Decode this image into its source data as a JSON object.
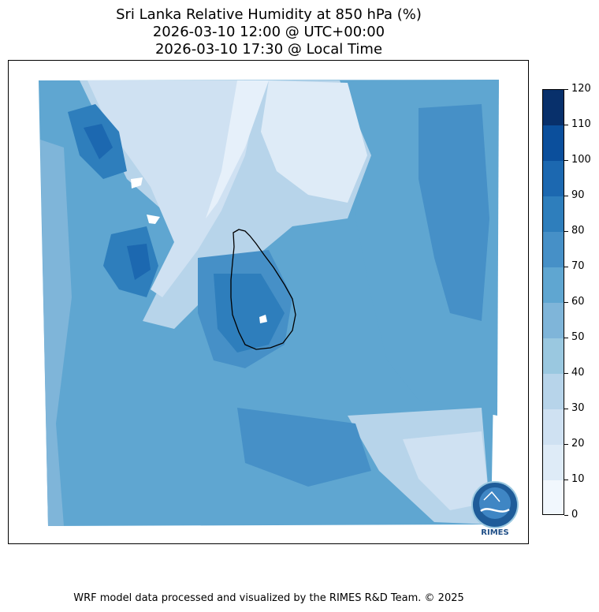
{
  "title": {
    "line1": "Sri Lanka Relative Humidity at 850 hPa (%)",
    "line2": "2026-03-10 12:00 @ UTC+00:00",
    "line3": "2026-03-10 17:30 @ Local Time"
  },
  "colorbar": {
    "ticks": [
      "0",
      "10",
      "20",
      "30",
      "40",
      "50",
      "60",
      "70",
      "80",
      "90",
      "100",
      "110",
      "120"
    ],
    "colors": [
      "#f1f7fd",
      "#deebf7",
      "#cfe1f2",
      "#b7d4ea",
      "#9ac8e0",
      "#7fb5d9",
      "#5fa6d1",
      "#4690c7",
      "#2e7ebc",
      "#1c68b0",
      "#0b4f9c",
      "#08306b"
    ]
  },
  "logo": {
    "text": "RIMES"
  },
  "footer": "WRF model data processed and visualized by the RIMES R&D Team. © 2025"
}
